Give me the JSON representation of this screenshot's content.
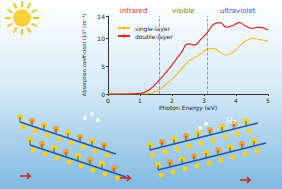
{
  "chart_data": {
    "type": "line",
    "x_label": "Photon Energy (eV)",
    "y_label": "Absorption coefficient (10⁵ cm⁻¹)",
    "x": [
      0,
      0.5,
      1.0,
      1.3,
      1.6,
      1.9,
      2.1,
      2.3,
      2.5,
      2.7,
      2.9,
      3.1,
      3.3,
      3.5,
      3.7,
      3.9,
      4.1,
      4.3,
      4.5,
      4.7,
      5.0
    ],
    "series": [
      {
        "name": "single-layer",
        "color": "#f2c12e",
        "values": [
          0,
          0,
          0,
          0.1,
          0.8,
          2.2,
          3.2,
          4.5,
          5.8,
          6.5,
          7.2,
          8,
          8.2,
          7.5,
          7,
          7.5,
          8.5,
          9.5,
          10,
          9.8,
          9.5
        ]
      },
      {
        "name": "double-layer",
        "color": "#e4261c",
        "values": [
          0,
          0,
          0.1,
          0.8,
          2.5,
          4.5,
          6,
          7.5,
          9,
          8.8,
          9.8,
          11,
          12.5,
          12.8,
          12,
          12.3,
          12.8,
          12.2,
          11.8,
          12,
          11.5
        ]
      }
    ],
    "xlim": [
      0,
      5
    ],
    "xticks": [
      0,
      1,
      2,
      3,
      4,
      5
    ],
    "ylim": [
      0,
      14
    ],
    "yticks": [
      0,
      5,
      10
    ],
    "legend": "upper left",
    "grid": false,
    "region_bounds": [
      1.6,
      3.1
    ],
    "regions": [
      {
        "label": "infrared",
        "x": 0.8,
        "color": "#e0301e"
      },
      {
        "label": "visible",
        "x": 2.35,
        "color": "#2a9d3a"
      },
      {
        "label": "ultraviolet",
        "x": 4.05,
        "color": "#3056d0"
      }
    ]
  },
  "illustration": {
    "label": "H₂"
  }
}
